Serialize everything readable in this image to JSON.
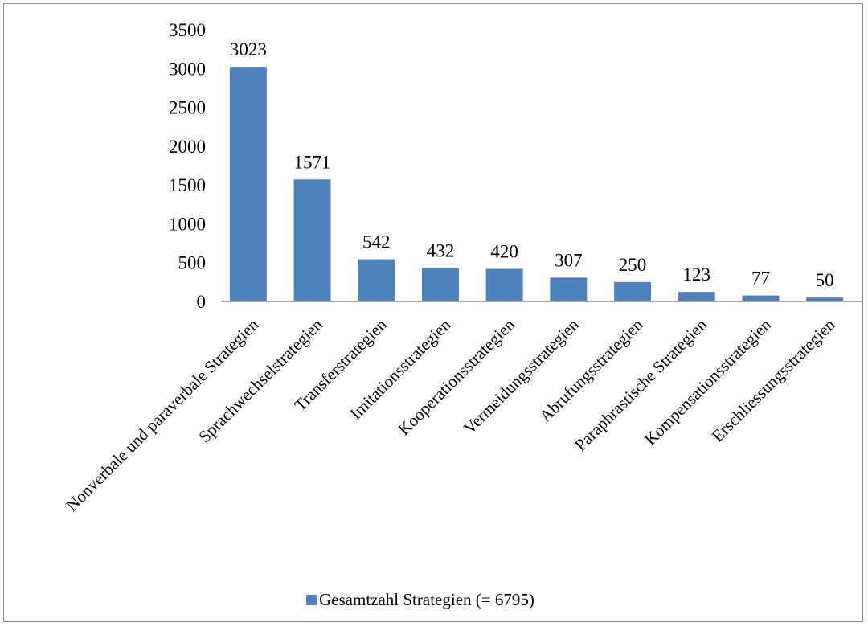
{
  "chart_data": {
    "type": "bar",
    "categories": [
      "Nonverbale und paraverbale Strategien",
      "Sprachwechselstrategien",
      "Transferstrategien",
      "Imitationsstrategien",
      "Kooperationsstrategien",
      "Vermeidungsstrategien",
      "Abrufungsstrategien",
      "Paraphrastische Strategien",
      "Kompensationsstrategien",
      "Erschliessungsstrategien"
    ],
    "series": [
      {
        "name": "Gesamtzahl Strategien (= 6795)",
        "values": [
          3023,
          1571,
          542,
          432,
          420,
          307,
          250,
          123,
          77,
          50
        ],
        "color": "#4f81bd"
      }
    ],
    "ylim": [
      0,
      3500
    ],
    "yticks": [
      0,
      500,
      1000,
      1500,
      2000,
      2500,
      3000,
      3500
    ],
    "data_labels": true,
    "grid": false,
    "legend": "bottom"
  }
}
